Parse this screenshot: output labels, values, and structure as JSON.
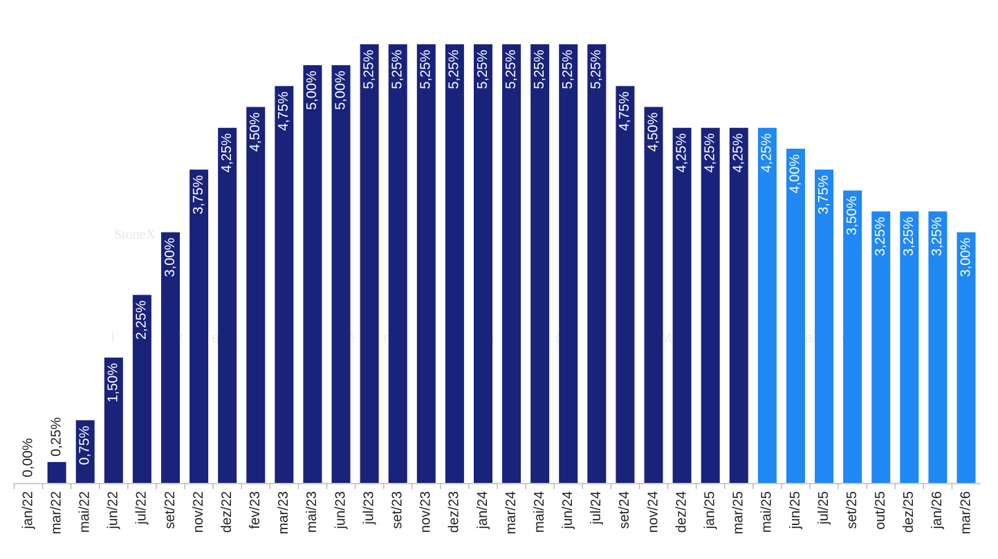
{
  "chart_data": {
    "type": "bar",
    "watermark": [
      "StoneX",
      "Inteligência de Mercado"
    ],
    "categories": [
      "jan/22",
      "mar/22",
      "mai/22",
      "jun/22",
      "jul/22",
      "set/22",
      "nov/22",
      "dez/22",
      "fev/23",
      "mar/23",
      "mai/23",
      "jun/23",
      "jul/23",
      "set/23",
      "nov/23",
      "dez/23",
      "jan/24",
      "mar/24",
      "mai/24",
      "jun/24",
      "jul/24",
      "set/24",
      "nov/24",
      "dez/24",
      "jan/25",
      "mar/25",
      "mai/25",
      "jun/25",
      "jul/25",
      "set/25",
      "out/25",
      "dez/25",
      "jan/26",
      "mar/26"
    ],
    "values": [
      0,
      0.25,
      0.75,
      1.5,
      2.25,
      3,
      3.75,
      4.25,
      4.5,
      4.75,
      5,
      5,
      5.25,
      5.25,
      5.25,
      5.25,
      5.25,
      5.25,
      5.25,
      5.25,
      5.25,
      4.75,
      4.5,
      4.25,
      4.25,
      4.25,
      4.25,
      4,
      3.75,
      3.5,
      3.25,
      3.25,
      3.25,
      3
    ],
    "value_labels": [
      "0,00%",
      "0,25%",
      "0,75%",
      "1,50%",
      "2,25%",
      "3,00%",
      "3,75%",
      "4,25%",
      "4,50%",
      "4,75%",
      "5,00%",
      "5,00%",
      "5,25%",
      "5,25%",
      "5,25%",
      "5,25%",
      "5,25%",
      "5,25%",
      "5,25%",
      "5,25%",
      "5,25%",
      "4,75%",
      "4,50%",
      "4,25%",
      "4,25%",
      "4,25%",
      "4,25%",
      "4,00%",
      "3,75%",
      "3,50%",
      "3,25%",
      "3,25%",
      "3,25%",
      "3,00%"
    ],
    "colors": [
      "#1a237a",
      "#1a237a",
      "#1a237a",
      "#1a237a",
      "#1a237a",
      "#1a237a",
      "#1a237a",
      "#1a237a",
      "#1a237a",
      "#1a237a",
      "#1a237a",
      "#1a237a",
      "#1a237a",
      "#1a237a",
      "#1a237a",
      "#1a237a",
      "#1a237a",
      "#1a237a",
      "#1a237a",
      "#1a237a",
      "#1a237a",
      "#1a237a",
      "#1a237a",
      "#1a237a",
      "#1a237a",
      "#1a237a",
      "#1f88f2",
      "#1f88f2",
      "#1f88f2",
      "#1f88f2",
      "#1f88f2",
      "#1f88f2",
      "#1f88f2",
      "#1f88f2"
    ]
  }
}
